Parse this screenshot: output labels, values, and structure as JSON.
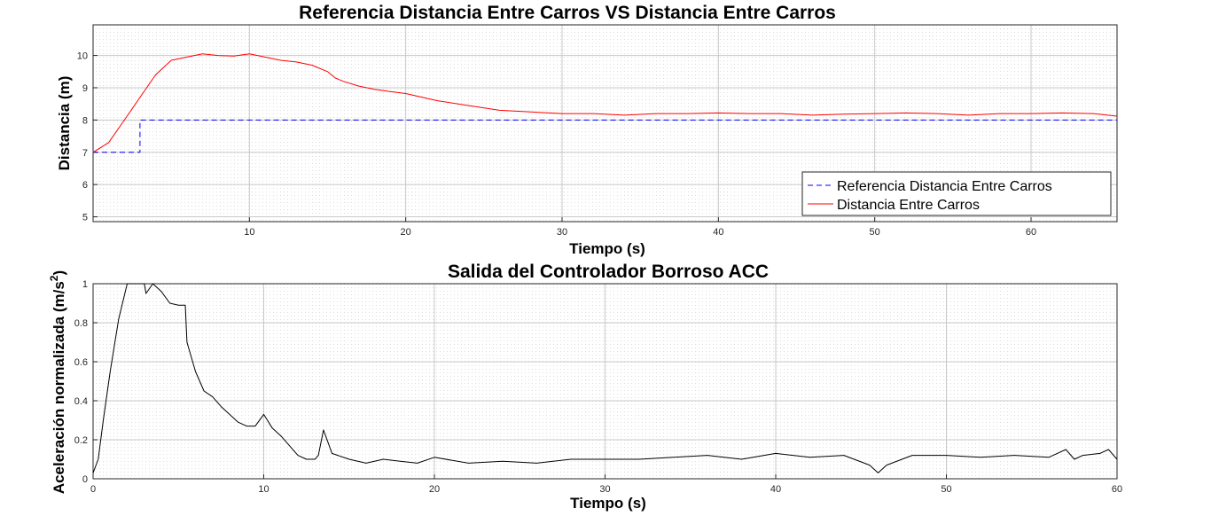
{
  "chart_data": [
    {
      "type": "line",
      "title": "Referencia Distancia Entre Carros VS Distancia Entre Carros",
      "xlabel": "Tiempo (s)",
      "ylabel": "Distancia (m)",
      "xlim": [
        0,
        65.5
      ],
      "ylim": [
        4.85,
        10.95
      ],
      "xticks": [
        10,
        20,
        30,
        40,
        50,
        60
      ],
      "yticks": [
        5,
        6,
        7,
        8,
        9,
        10
      ],
      "grid": "on, with minor grid",
      "legend_position": "bottom-right",
      "series": [
        {
          "name": "Referencia Distancia Entre Carros",
          "color": "#0000ff",
          "style": "dashed",
          "x": [
            0,
            3,
            3,
            65.5
          ],
          "y": [
            7,
            7,
            8,
            8
          ]
        },
        {
          "name": "Distancia Entre Carros",
          "color": "#ff0000",
          "style": "solid",
          "x": [
            0,
            1,
            2,
            3,
            4,
            5,
            6,
            7,
            8,
            9,
            10,
            11,
            12,
            13,
            14,
            15,
            15.5,
            16,
            17,
            18,
            19,
            20,
            22,
            24,
            26,
            28,
            30,
            32,
            34,
            36,
            38,
            40,
            42,
            44,
            46,
            48,
            50,
            52,
            54,
            56,
            58,
            60,
            62,
            64,
            65.5
          ],
          "y": [
            7.0,
            7.3,
            8.0,
            8.7,
            9.4,
            9.85,
            9.95,
            10.05,
            10.0,
            9.98,
            10.05,
            9.95,
            9.85,
            9.8,
            9.7,
            9.5,
            9.3,
            9.2,
            9.05,
            8.95,
            8.88,
            8.82,
            8.6,
            8.45,
            8.3,
            8.25,
            8.2,
            8.2,
            8.15,
            8.2,
            8.2,
            8.22,
            8.2,
            8.2,
            8.15,
            8.18,
            8.2,
            8.22,
            8.2,
            8.15,
            8.2,
            8.2,
            8.22,
            8.2,
            8.12
          ]
        }
      ]
    },
    {
      "type": "line",
      "title": "Salida del Controlador Borroso ACC",
      "xlabel": "Tiempo (s)",
      "ylabel": "Aceleración normalizada (m/s",
      "ylabel_sup": "2",
      "ylabel_close": ")",
      "xlim": [
        0,
        60
      ],
      "ylim": [
        0,
        1
      ],
      "xticks": [
        0,
        10,
        20,
        30,
        40,
        50,
        60
      ],
      "yticks": [
        0,
        0.2,
        0.4,
        0.6,
        0.8,
        1
      ],
      "ytick_labels": [
        "0",
        "0.2",
        "0.4",
        "0.6",
        "0.8",
        "1"
      ],
      "grid": "on, with minor grid",
      "series": [
        {
          "color": "#000000",
          "style": "solid",
          "x": [
            0,
            0.3,
            0.6,
            1.0,
            1.5,
            2.0,
            2.5,
            3.0,
            3.1,
            3.5,
            4.0,
            4.5,
            5.0,
            5.4,
            5.5,
            6.0,
            6.5,
            7.0,
            7.5,
            8.0,
            8.5,
            9.0,
            9.5,
            10.0,
            10.5,
            11.0,
            11.5,
            12.0,
            12.5,
            13.0,
            13.2,
            13.5,
            14.0,
            15.0,
            16.0,
            17.0,
            18.0,
            19.0,
            20.0,
            22.0,
            24.0,
            26.0,
            28.0,
            30.0,
            32.0,
            34.0,
            36.0,
            38.0,
            40.0,
            42.0,
            44.0,
            45.5,
            46.0,
            46.5,
            48.0,
            50.0,
            52.0,
            54.0,
            56.0,
            57.0,
            57.5,
            58.0,
            59.0,
            59.5,
            60.0
          ],
          "y": [
            0.03,
            0.1,
            0.3,
            0.55,
            0.82,
            1.0,
            1.0,
            1.0,
            0.95,
            1.0,
            0.96,
            0.9,
            0.89,
            0.89,
            0.7,
            0.55,
            0.45,
            0.42,
            0.37,
            0.33,
            0.29,
            0.27,
            0.27,
            0.33,
            0.26,
            0.22,
            0.17,
            0.12,
            0.1,
            0.1,
            0.12,
            0.25,
            0.13,
            0.1,
            0.08,
            0.1,
            0.09,
            0.08,
            0.11,
            0.08,
            0.09,
            0.08,
            0.1,
            0.1,
            0.1,
            0.11,
            0.12,
            0.1,
            0.13,
            0.11,
            0.12,
            0.07,
            0.03,
            0.07,
            0.12,
            0.12,
            0.11,
            0.12,
            0.11,
            0.15,
            0.1,
            0.12,
            0.13,
            0.15,
            0.1
          ]
        }
      ]
    }
  ]
}
